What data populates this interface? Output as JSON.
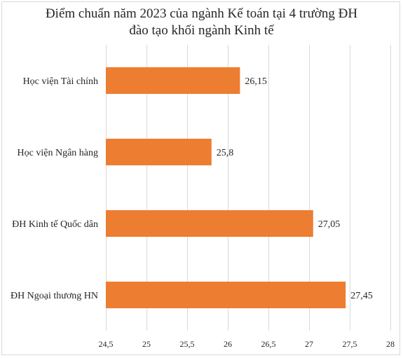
{
  "chart_data": {
    "type": "bar",
    "orientation": "horizontal",
    "title_lines": [
      "Điểm chuẩn năm 2023 của ngành Kế toán tại 4 trường ĐH",
      "đào tạo khối ngành Kinh tế"
    ],
    "categories": [
      "Học viện Tài chính",
      "Học viện Ngân hàng",
      "ĐH Kinh tế Quốc dân",
      "ĐH Ngoại thương HN"
    ],
    "values": [
      26.15,
      25.8,
      27.05,
      27.45
    ],
    "value_labels": [
      "26,15",
      "25,8",
      "27,05",
      "27,45"
    ],
    "xlim": [
      24.5,
      28
    ],
    "x_ticks": [
      24.5,
      25,
      25.5,
      26,
      26.5,
      27,
      27.5,
      28
    ],
    "x_tick_labels": [
      "24,5",
      "25",
      "25,5",
      "26",
      "26,5",
      "27",
      "27,5",
      "28"
    ],
    "grid": "vertical",
    "legend": "none",
    "bar_color": "#ED7D31"
  }
}
